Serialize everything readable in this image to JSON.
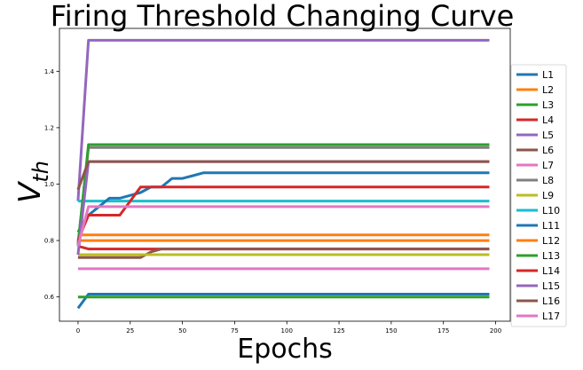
{
  "chart_data": {
    "type": "line",
    "title": "Firing Threshold Changing Curve",
    "xlabel": "Epochs",
    "ylabel_base": "V",
    "ylabel_sub": "th",
    "xlim": [
      -8.9,
      207
    ],
    "ylim": [
      0.514,
      1.552
    ],
    "x_ticks": [
      0,
      25,
      50,
      75,
      100,
      125,
      150,
      175,
      200
    ],
    "y_ticks": [
      0.6,
      0.8,
      1.0,
      1.2,
      1.4
    ],
    "y_tick_labels": [
      "0.6",
      "0.8",
      "1.0",
      "1.2",
      "1.4"
    ],
    "grid": false,
    "legend_position": "right",
    "series": [
      {
        "name": "L1",
        "color": "#1f77b4",
        "points": [
          [
            0,
            0.56
          ],
          [
            5,
            0.61
          ],
          [
            197,
            0.61
          ]
        ]
      },
      {
        "name": "L2",
        "color": "#ff7f0e",
        "points": [
          [
            0,
            0.8
          ],
          [
            5,
            0.8
          ],
          [
            197,
            0.8
          ]
        ]
      },
      {
        "name": "L3",
        "color": "#2ca02c",
        "points": [
          [
            0,
            0.6
          ],
          [
            5,
            0.6
          ],
          [
            197,
            0.6
          ]
        ]
      },
      {
        "name": "L4",
        "color": "#d62728",
        "points": [
          [
            0,
            0.78
          ],
          [
            5,
            0.77
          ],
          [
            197,
            0.77
          ]
        ]
      },
      {
        "name": "L5",
        "color": "#9467bd",
        "points": [
          [
            0,
            0.94
          ],
          [
            5,
            1.51
          ],
          [
            197,
            1.51
          ]
        ]
      },
      {
        "name": "L6",
        "color": "#8c564b",
        "points": [
          [
            0,
            0.74
          ],
          [
            30,
            0.74
          ],
          [
            35,
            0.76
          ],
          [
            40,
            0.77
          ],
          [
            197,
            0.77
          ]
        ]
      },
      {
        "name": "L7",
        "color": "#e377c2",
        "points": [
          [
            0,
            0.7
          ],
          [
            197,
            0.7
          ]
        ]
      },
      {
        "name": "L8",
        "color": "#7f7f7f",
        "points": [
          [
            0,
            0.79
          ],
          [
            5,
            1.13
          ],
          [
            197,
            1.13
          ]
        ]
      },
      {
        "name": "L9",
        "color": "#bcbd22",
        "points": [
          [
            0,
            0.75
          ],
          [
            197,
            0.75
          ]
        ]
      },
      {
        "name": "L10",
        "color": "#17becf",
        "points": [
          [
            0,
            0.94
          ],
          [
            197,
            0.94
          ]
        ]
      },
      {
        "name": "L11",
        "color": "#1f77b4",
        "points": [
          [
            0,
            0.83
          ],
          [
            5,
            0.89
          ],
          [
            10,
            0.92
          ],
          [
            15,
            0.95
          ],
          [
            20,
            0.95
          ],
          [
            25,
            0.96
          ],
          [
            30,
            0.97
          ],
          [
            35,
            0.99
          ],
          [
            40,
            0.99
          ],
          [
            45,
            1.02
          ],
          [
            50,
            1.02
          ],
          [
            55,
            1.03
          ],
          [
            60,
            1.04
          ],
          [
            197,
            1.04
          ]
        ]
      },
      {
        "name": "L12",
        "color": "#ff7f0e",
        "points": [
          [
            0,
            0.82
          ],
          [
            197,
            0.82
          ]
        ]
      },
      {
        "name": "L13",
        "color": "#2ca02c",
        "points": [
          [
            0,
            0.78
          ],
          [
            5,
            1.14
          ],
          [
            197,
            1.14
          ]
        ]
      },
      {
        "name": "L14",
        "color": "#d62728",
        "points": [
          [
            0,
            0.8
          ],
          [
            5,
            0.89
          ],
          [
            20,
            0.89
          ],
          [
            25,
            0.94
          ],
          [
            30,
            0.99
          ],
          [
            197,
            0.99
          ]
        ]
      },
      {
        "name": "L15",
        "color": "#9467bd",
        "points": [
          [
            0,
            0.75
          ],
          [
            5,
            1.08
          ],
          [
            197,
            1.08
          ]
        ]
      },
      {
        "name": "L16",
        "color": "#8c564b",
        "points": [
          [
            0,
            0.98
          ],
          [
            5,
            1.08
          ],
          [
            197,
            1.08
          ]
        ]
      },
      {
        "name": "L17",
        "color": "#e377c2",
        "points": [
          [
            0,
            0.78
          ],
          [
            5,
            0.92
          ],
          [
            197,
            0.92
          ]
        ]
      }
    ]
  }
}
